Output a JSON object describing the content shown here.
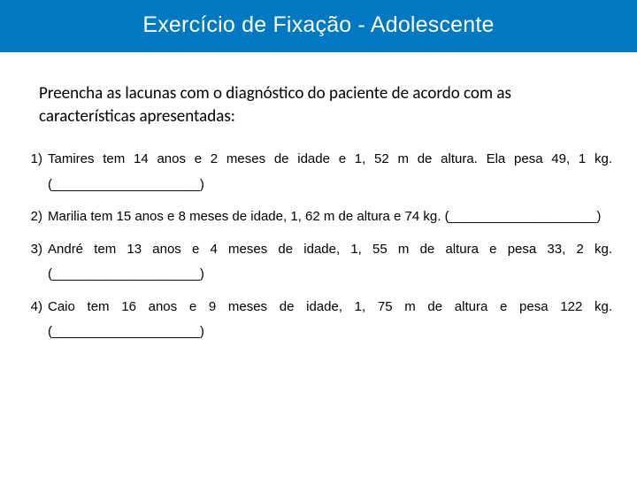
{
  "header": {
    "title": "Exercício de Fixação - Adolescente",
    "background_color": "#0079c2",
    "text_color": "#ffffff"
  },
  "instruction": {
    "text": "Preencha as lacunas com o diagnóstico do paciente de acordo com as características apresentadas:"
  },
  "questions": [
    {
      "num": "1)",
      "text": "Tamires tem 14 anos e 2 meses de idade e 1, 52 m de altura. Ela pesa 49, 1 kg. (____________________)"
    },
    {
      "num": "2)",
      "text": "Marilia tem 15 anos e 8 meses de idade, 1, 62 m de altura e 74 kg. (____________________)"
    },
    {
      "num": "3)",
      "text": "André tem 13 anos e 4 meses de idade, 1, 55 m de altura e pesa 33, 2 kg. (____________________)"
    },
    {
      "num": "4)",
      "text": "Caio tem 16 anos e 9 meses de idade, 1, 75 m de altura e pesa 122 kg. (____________________)"
    }
  ],
  "colors": {
    "page_bg": "#ffffff",
    "body_text": "#000000"
  }
}
